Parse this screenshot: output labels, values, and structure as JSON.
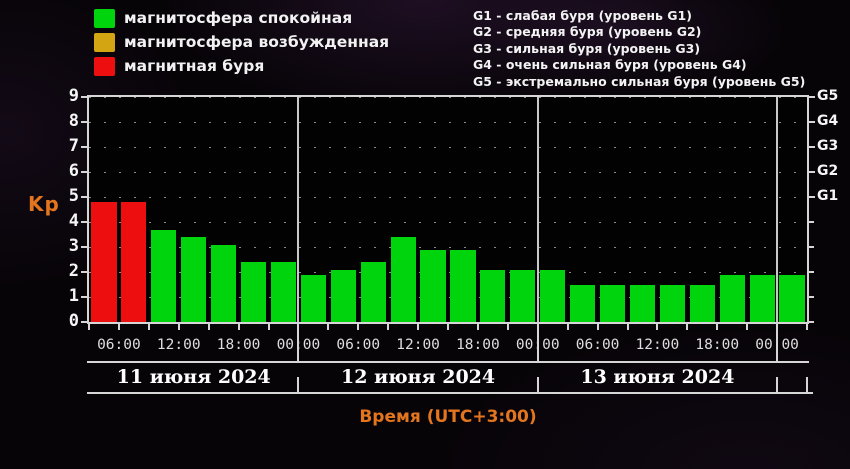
{
  "legend": {
    "items": [
      {
        "name": "quiet",
        "label": "магнитосфера спокойная",
        "color": "#00d40c"
      },
      {
        "name": "unsettled",
        "label": "магнитосфера возбужденная",
        "color": "#d4a513"
      },
      {
        "name": "storm",
        "label": "магнитная буря",
        "color": "#ed0f0f"
      }
    ]
  },
  "storm_levels": [
    "G1 - слабая буря (уровень G1)",
    "G2 - средняя буря (уровень G2)",
    "G3 - сильная буря (уровень G3)",
    "G4 - очень сильная буря (уровень G4)",
    "G5 - экстремально сильная буря (уровень G5)"
  ],
  "chart_data": {
    "type": "bar",
    "title": "",
    "ylabel": "Kp",
    "xlabel": "Время (UTC+3:00)",
    "ylim": [
      0,
      9
    ],
    "y_ticks": [
      0,
      1,
      2,
      3,
      4,
      5,
      6,
      7,
      8,
      9
    ],
    "right_axis_labels": [
      {
        "kp": 5,
        "label": "G1"
      },
      {
        "kp": 6,
        "label": "G2"
      },
      {
        "kp": 7,
        "label": "G3"
      },
      {
        "kp": 8,
        "label": "G4"
      },
      {
        "kp": 9,
        "label": "G5"
      }
    ],
    "interval_hours": 3,
    "grid": "dotted-horizontal",
    "x_time_ticks": [
      "06:00",
      "12:00",
      "18:00",
      "00:00",
      "06:00",
      "12:00",
      "18:00",
      "00:00",
      "06:00",
      "12:00",
      "18:00",
      "00:00"
    ],
    "days": [
      {
        "label": "11 июня 2024",
        "bars": 7
      },
      {
        "label": "12 июня 2024",
        "bars": 8
      },
      {
        "label": "13 июня 2024",
        "bars": 8
      },
      {
        "label": "",
        "bars": 1
      }
    ],
    "values": [
      4.8,
      4.8,
      3.7,
      3.4,
      3.1,
      2.4,
      2.4,
      1.9,
      2.1,
      2.4,
      3.4,
      2.9,
      2.9,
      2.1,
      2.1,
      2.1,
      1.5,
      1.5,
      1.5,
      1.5,
      1.5,
      1.9,
      1.9,
      1.9
    ],
    "statuses": [
      "storm",
      "storm",
      "quiet",
      "quiet",
      "quiet",
      "quiet",
      "quiet",
      "quiet",
      "quiet",
      "quiet",
      "quiet",
      "quiet",
      "quiet",
      "quiet",
      "quiet",
      "quiet",
      "quiet",
      "quiet",
      "quiet",
      "quiet",
      "quiet",
      "quiet",
      "quiet",
      "quiet"
    ],
    "status_colors": {
      "quiet": "#00d40c",
      "unsettled": "#d4a513",
      "storm": "#ed0f0f"
    }
  },
  "colors": {
    "accent_orange": "#e2751d",
    "axis": "#d6d6d6",
    "text": "#f2f2f2",
    "background": "#070408"
  }
}
